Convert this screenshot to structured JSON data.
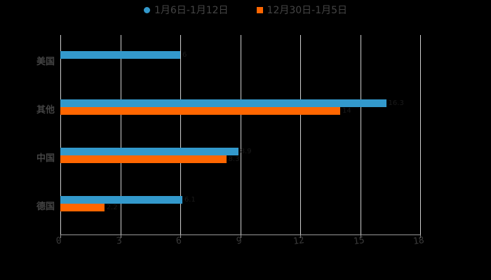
{
  "chart_data": {
    "type": "bar",
    "orientation": "horizontal",
    "title": "",
    "xlabel": "",
    "ylabel": "",
    "categories": [
      "美国",
      "其他",
      "中国",
      "德国"
    ],
    "series": [
      {
        "name": "1月6日-1月12日",
        "color": "#3399CC",
        "marker": "circle",
        "values": [
          6.0,
          16.3,
          8.9,
          6.1
        ]
      },
      {
        "name": "12月30日-1月5日",
        "color": "#FF6600",
        "marker": "square",
        "values": [
          null,
          14.0,
          8.3,
          2.2
        ]
      }
    ],
    "xlim": [
      0,
      18
    ],
    "x_ticks": [
      "0",
      "3",
      "6",
      "9",
      "12",
      "15",
      "18"
    ],
    "grid": true,
    "legend_position": "top"
  },
  "legend": {
    "items": [
      {
        "label": "1月6日-1月12日",
        "color": "#3399CC"
      },
      {
        "label": "12月30日-1月5日",
        "color": "#FF6600"
      }
    ]
  }
}
